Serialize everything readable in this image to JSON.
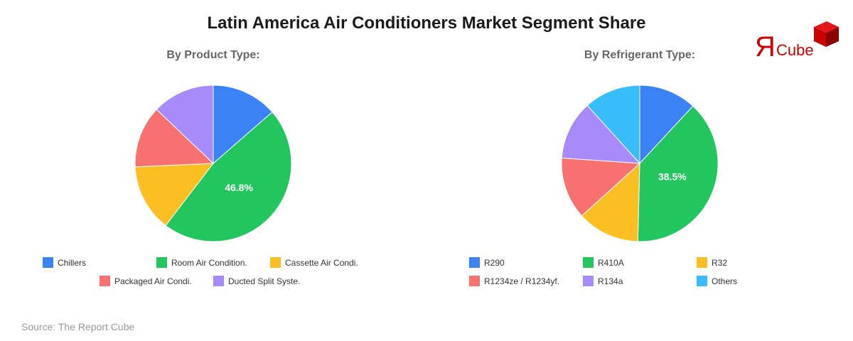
{
  "title": "Latin America Air Conditioners Market Segment Share",
  "source": "Source: The Report Cube",
  "logo": {
    "letter": "Я",
    "text": "Cube",
    "color": "#cc0000"
  },
  "chart_data": [
    {
      "type": "pie",
      "title": "By Product Type:",
      "categories": [
        "Chillers",
        "Room Air Condition.",
        "Cassette Air Condi.",
        "Packaged Air Condi.",
        "Ducted Split Syste."
      ],
      "values": [
        13.6,
        46.8,
        13.9,
        12.8,
        12.9
      ],
      "colors": [
        "#3b82f6",
        "#22c55e",
        "#fbbf24",
        "#f87171",
        "#a78bfa"
      ],
      "data_labels": [
        {
          "category": "Room Air Condition.",
          "label": "46.8%"
        }
      ],
      "legend_position": "bottom"
    },
    {
      "type": "pie",
      "title": "By Refrigerant Type:",
      "categories": [
        "R290",
        "R410A",
        "R32",
        "R1234ze / R1234yf.",
        "R134a",
        "Others"
      ],
      "values": [
        11.9,
        38.5,
        12.9,
        12.8,
        12.2,
        11.7
      ],
      "colors": [
        "#3b82f6",
        "#22c55e",
        "#fbbf24",
        "#f87171",
        "#a78bfa",
        "#38bdf8"
      ],
      "data_labels": [
        {
          "category": "R410A",
          "label": "38.5%"
        }
      ],
      "legend_position": "bottom"
    }
  ]
}
